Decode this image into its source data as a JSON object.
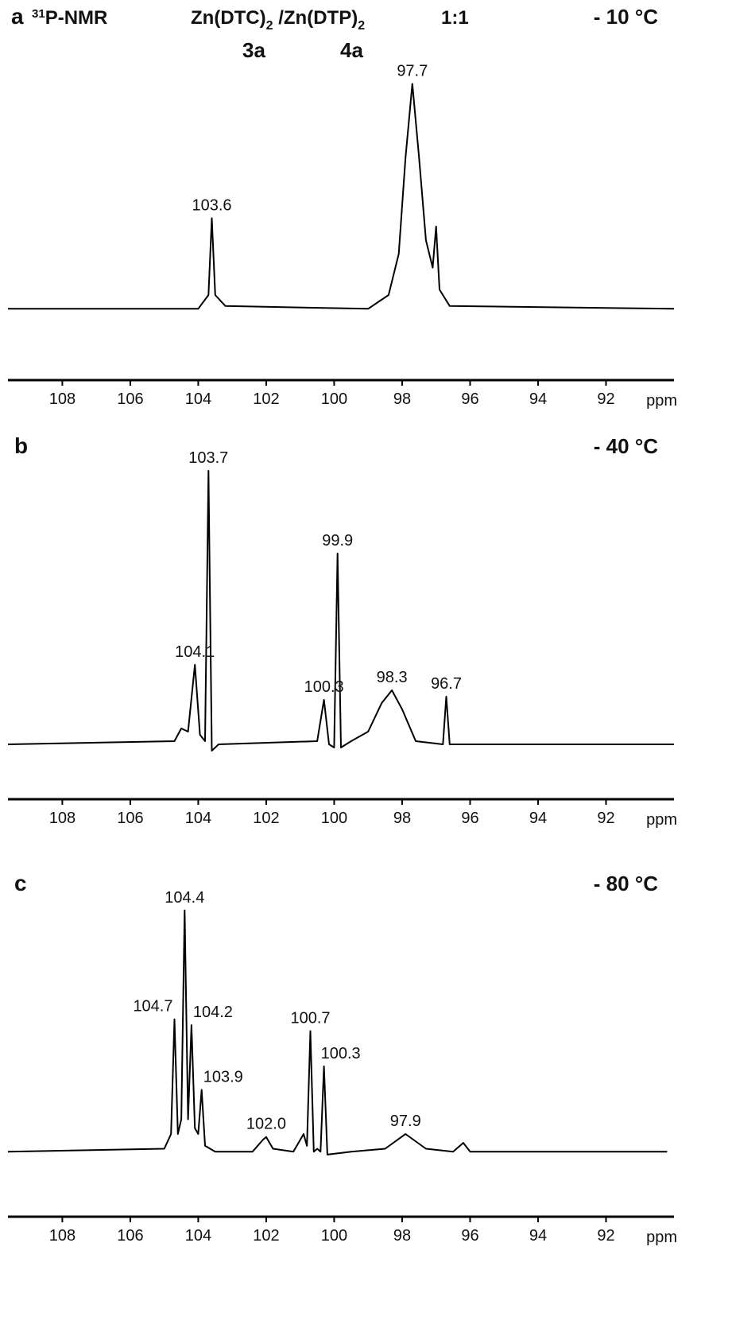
{
  "header": {
    "nucleus_mass": "31",
    "nucleus": "P-NMR",
    "compound_1": "Zn(DTC)",
    "compound_1_sub": "2",
    "compound_2": " /Zn(DTP)",
    "compound_2_sub": "2",
    "ratio": "1:1",
    "compound_labels": [
      "3a",
      "4a"
    ]
  },
  "chart_data": [
    {
      "type": "line",
      "panel": "a",
      "temperature": "- 10 °C",
      "color": "#000000",
      "xlabel": "ppm",
      "xlim": [
        109.6,
        90.0
      ],
      "xticks": [
        108,
        106,
        104,
        102,
        100,
        98,
        96,
        94,
        92
      ],
      "ylim": [
        0,
        1
      ],
      "x": [
        109.6,
        104.0,
        103.7,
        103.6,
        103.5,
        103.2,
        99,
        98.4,
        98.1,
        97.9,
        97.7,
        97.5,
        97.3,
        97.1,
        97.0,
        96.9,
        96.6,
        90.0
      ],
      "values": [
        0.15,
        0.15,
        0.2,
        0.48,
        0.2,
        0.16,
        0.15,
        0.2,
        0.35,
        0.7,
        0.97,
        0.7,
        0.4,
        0.3,
        0.45,
        0.22,
        0.16,
        0.15
      ],
      "peaks": [
        {
          "x": 103.6,
          "y": 0.48,
          "label": "103.6"
        },
        {
          "x": 97.7,
          "y": 0.97,
          "label": "97.7"
        }
      ]
    },
    {
      "type": "line",
      "panel": "b",
      "temperature": "- 40 °C",
      "color": "#000000",
      "xlabel": "ppm",
      "xlim": [
        109.6,
        90.0
      ],
      "xticks": [
        108,
        106,
        104,
        102,
        100,
        98,
        96,
        94,
        92
      ],
      "ylim": [
        0,
        1
      ],
      "x": [
        109.6,
        104.7,
        104.5,
        104.3,
        104.1,
        103.95,
        103.8,
        103.7,
        103.6,
        103.4,
        100.5,
        100.3,
        100.15,
        100.0,
        99.9,
        99.8,
        99.5,
        99.0,
        98.6,
        98.3,
        98.0,
        97.6,
        96.8,
        96.7,
        96.6,
        90.0
      ],
      "values": [
        0.11,
        0.12,
        0.16,
        0.15,
        0.36,
        0.14,
        0.12,
        0.97,
        0.09,
        0.11,
        0.12,
        0.25,
        0.11,
        0.1,
        0.71,
        0.1,
        0.12,
        0.15,
        0.24,
        0.28,
        0.22,
        0.12,
        0.11,
        0.26,
        0.11,
        0.11
      ],
      "peaks": [
        {
          "x": 104.1,
          "y": 0.36,
          "label": "104.1"
        },
        {
          "x": 103.7,
          "y": 0.97,
          "label": "103.7"
        },
        {
          "x": 100.3,
          "y": 0.25,
          "label": "100.3"
        },
        {
          "x": 99.9,
          "y": 0.71,
          "label": "99.9"
        },
        {
          "x": 98.3,
          "y": 0.28,
          "label": "98.3"
        },
        {
          "x": 96.7,
          "y": 0.26,
          "label": "96.7"
        }
      ]
    },
    {
      "type": "line",
      "panel": "c",
      "temperature": "- 80 °C",
      "color": "#000000",
      "xlabel": "ppm",
      "xlim": [
        109.6,
        90.0
      ],
      "xticks": [
        108,
        106,
        104,
        102,
        100,
        98,
        96,
        94,
        92
      ],
      "ylim": [
        0,
        1
      ],
      "x": [
        109.6,
        105.0,
        104.8,
        104.7,
        104.6,
        104.5,
        104.4,
        104.3,
        104.2,
        104.1,
        104.0,
        103.9,
        103.8,
        103.5,
        102.4,
        102.1,
        102.0,
        101.8,
        101.2,
        100.9,
        100.8,
        100.7,
        100.6,
        100.5,
        100.4,
        100.3,
        100.2,
        99.5,
        98.5,
        97.9,
        97.3,
        96.5,
        96.2,
        96.0,
        90.2
      ],
      "values": [
        0.14,
        0.15,
        0.2,
        0.59,
        0.2,
        0.25,
        0.96,
        0.25,
        0.57,
        0.22,
        0.2,
        0.35,
        0.16,
        0.14,
        0.14,
        0.18,
        0.19,
        0.15,
        0.14,
        0.2,
        0.16,
        0.55,
        0.14,
        0.15,
        0.14,
        0.43,
        0.13,
        0.14,
        0.15,
        0.2,
        0.15,
        0.14,
        0.17,
        0.14,
        0.14
      ],
      "peaks": [
        {
          "x": 104.7,
          "y": 0.59,
          "label": "104.7"
        },
        {
          "x": 104.4,
          "y": 0.96,
          "label": "104.4"
        },
        {
          "x": 104.2,
          "y": 0.57,
          "label": "104.2"
        },
        {
          "x": 103.9,
          "y": 0.35,
          "label": "103.9"
        },
        {
          "x": 102.0,
          "y": 0.19,
          "label": "102.0"
        },
        {
          "x": 100.7,
          "y": 0.55,
          "label": "100.7"
        },
        {
          "x": 100.3,
          "y": 0.43,
          "label": "100.3"
        },
        {
          "x": 97.9,
          "y": 0.2,
          "label": "97.9"
        }
      ]
    }
  ]
}
